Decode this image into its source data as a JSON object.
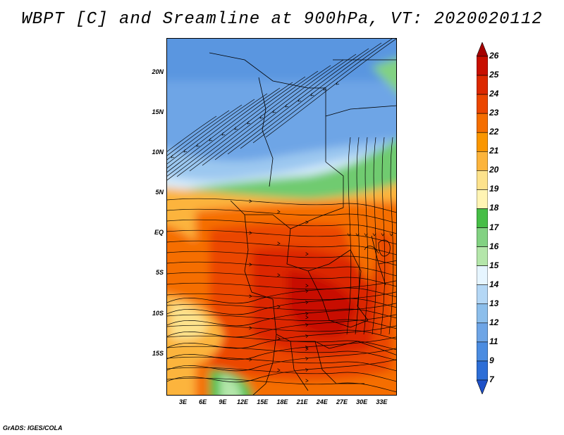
{
  "title": "WBPT [C] and Sreamline at 900hPa, VT: 2020020112",
  "footer": "GrADS: IGES/COLA",
  "lat_ticks": [
    "20N",
    "15N",
    "10N",
    "5N",
    "EQ",
    "5S",
    "10S",
    "15S"
  ],
  "lon_ticks": [
    "3E",
    "6E",
    "9E",
    "12E",
    "15E",
    "18E",
    "21E",
    "24E",
    "27E",
    "30E",
    "33E"
  ],
  "colorbar": {
    "labels": [
      "26",
      "25",
      "24",
      "23",
      "22",
      "21",
      "20",
      "19",
      "18",
      "17",
      "16",
      "15",
      "14",
      "13",
      "12",
      "11",
      "9",
      "7"
    ],
    "colors": [
      "#a50000",
      "#c80f00",
      "#dc2800",
      "#eb4600",
      "#f56e00",
      "#fa9600",
      "#fcb43c",
      "#fde28c",
      "#fff4b4",
      "#46be46",
      "#82d282",
      "#b4e6aa",
      "#e6f5ff",
      "#b4d7f5",
      "#8cbeeb",
      "#6ea5e6",
      "#4b8ce1",
      "#2d6ed7",
      "#1e50c8"
    ]
  }
}
